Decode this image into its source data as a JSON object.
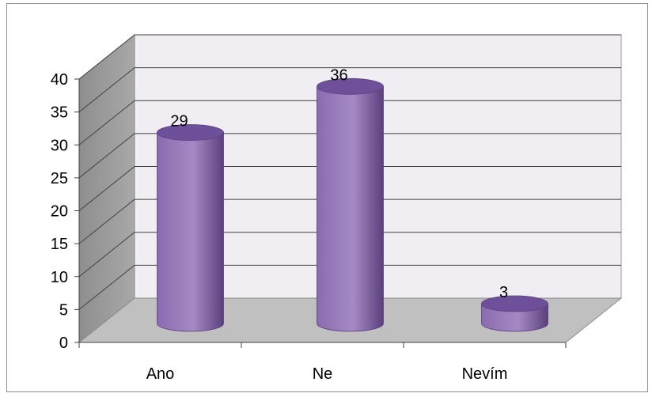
{
  "chart_data": {
    "type": "bar",
    "style": "3d-cylinder",
    "categories": [
      "Ano",
      "Ne",
      "Nevím"
    ],
    "values": [
      29,
      36,
      3
    ],
    "data_labels": [
      "29",
      "36",
      "3"
    ],
    "ylim": [
      0,
      40
    ],
    "yticks": [
      "0",
      "5",
      "10",
      "15",
      "20",
      "25",
      "30",
      "35",
      "40"
    ],
    "grid": true,
    "legend": "none",
    "colors": {
      "bar_light": "#a58ac4",
      "bar_mid": "#8b6bb0",
      "bar_dark": "#5b3f7d",
      "bar_top": "#6e509a",
      "wall_back": "#f0eef2",
      "wall_side": "#a8a8a8",
      "floor": "#c0c0c0",
      "gridline": "#404040"
    }
  }
}
